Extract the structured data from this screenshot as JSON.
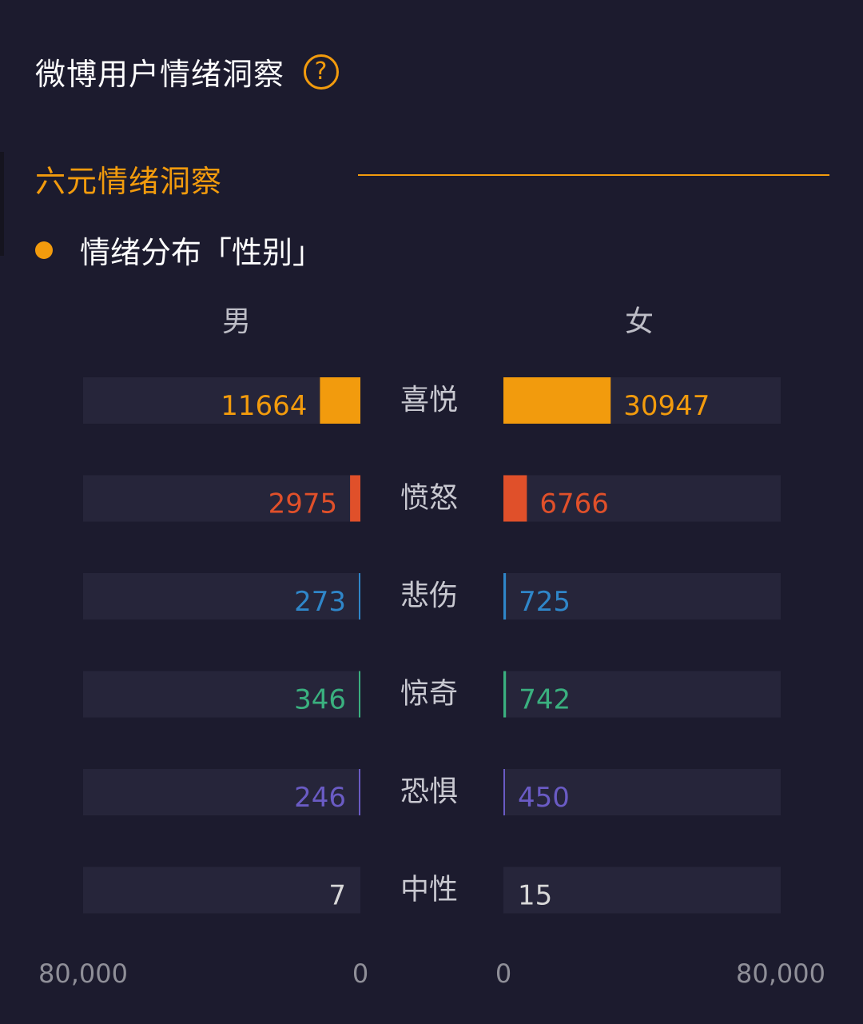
{
  "header": {
    "title": "微博用户情绪洞察",
    "help_icon": "question-circle-icon"
  },
  "section": {
    "title": "六元情绪洞察"
  },
  "subsection": {
    "title": "情绪分布「性别」"
  },
  "colors": {
    "background": "#1c1b2e",
    "accent": "#f29b0d",
    "track": "#26253a"
  },
  "chart_data": {
    "type": "bar",
    "orientation": "horizontal-butterfly",
    "categories": [
      "喜悦",
      "愤怒",
      "悲伤",
      "惊奇",
      "恐惧",
      "中性"
    ],
    "category_colors": [
      "#f29b0d",
      "#e0502a",
      "#2f86c9",
      "#3ab07f",
      "#6a5bc4",
      "#bfbfbf"
    ],
    "series": [
      {
        "name": "男",
        "values": [
          11664,
          2975,
          273,
          346,
          246,
          7
        ]
      },
      {
        "name": "女",
        "values": [
          30947,
          6766,
          725,
          742,
          450,
          15
        ]
      }
    ],
    "xlim": [
      0,
      80000
    ],
    "left_axis_ticks": [
      "80,000",
      "0"
    ],
    "right_axis_ticks": [
      "0",
      "80,000"
    ]
  }
}
